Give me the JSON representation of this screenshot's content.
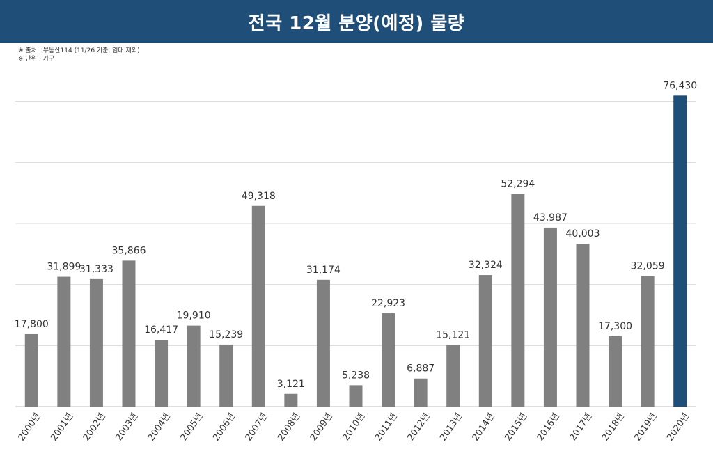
{
  "title": "전국 12월 분양(예정) 물량",
  "notes": {
    "source": "※ 출처 : 부동산114 (11/26 기준, 임대 제외)",
    "unit": "※ 단위 : 가구"
  },
  "colors": {
    "header": "#1f4e79",
    "bar": "#808080",
    "highlight": "#1f4e79",
    "grid": "#d9d9d9"
  },
  "chart_data": {
    "type": "bar",
    "title": "전국 12월 분양(예정) 물량",
    "xlabel": "",
    "ylabel": "",
    "categories": [
      "2000년",
      "2001년",
      "2002년",
      "2003년",
      "2004년",
      "2005년",
      "2006년",
      "2007년",
      "2008년",
      "2009년",
      "2010년",
      "2011년",
      "2012년",
      "2013년",
      "2014년",
      "2015년",
      "2016년",
      "2017년",
      "2018년",
      "2019년",
      "2020년"
    ],
    "values": [
      17800,
      31899,
      31333,
      35866,
      16417,
      19910,
      15239,
      49318,
      3121,
      31174,
      5238,
      22923,
      6887,
      15121,
      32324,
      52294,
      43987,
      40003,
      17300,
      32059,
      76430
    ],
    "value_labels": [
      "17,800",
      "31,899",
      "31,333",
      "35,866",
      "16,417",
      "19,910",
      "15,239",
      "49,318",
      "3,121",
      "31,174",
      "5,238",
      "22,923",
      "6,887",
      "15,121",
      "32,324",
      "52,294",
      "43,987",
      "40,003",
      "17,300",
      "32,059",
      "76,430"
    ],
    "highlight_category": "2020년",
    "ylim": [
      0,
      90000
    ],
    "y_grid_step": 15000,
    "grid": true,
    "legend": "none"
  }
}
